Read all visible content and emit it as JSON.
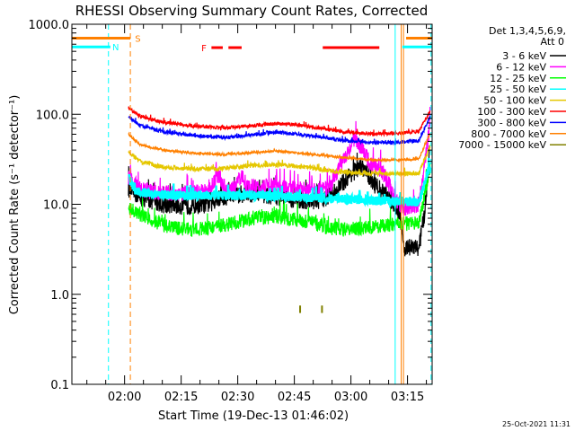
{
  "chart_data": {
    "type": "line",
    "title": "RHESSI Observing Summary Count Rates, Corrected",
    "xlabel": "Start Time (19-Dec-13 01:46:02)",
    "ylabel": "Corrected Count Rate (s⁻¹ detector⁻¹)",
    "yscale": "log",
    "ylim": [
      0.1,
      1000
    ],
    "xlim_minutes": [
      0,
      95.5
    ],
    "x_ticks": [
      {
        "label": "02:00",
        "minutes": 13.97
      },
      {
        "label": "02:15",
        "minutes": 28.97
      },
      {
        "label": "02:30",
        "minutes": 43.97
      },
      {
        "label": "02:45",
        "minutes": 58.97
      },
      {
        "label": "03:00",
        "minutes": 73.97
      },
      {
        "label": "03:15",
        "minutes": 88.97
      }
    ],
    "y_ticks": [
      {
        "label": "1000.0",
        "value": 1000
      },
      {
        "label": "100.0",
        "value": 100
      },
      {
        "label": "10.0",
        "value": 10
      },
      {
        "label": "1.0",
        "value": 1
      },
      {
        "label": "0.1",
        "value": 0.1
      }
    ],
    "legend": {
      "header": [
        "Det 1,3,4,5,6,9,",
        "Att 0"
      ],
      "position": "right"
    },
    "series": [
      {
        "name": "3 - 6 keV",
        "color": "#000000",
        "noise": 0.1,
        "points": [
          [
            15,
            15
          ],
          [
            18,
            12
          ],
          [
            24,
            10
          ],
          [
            30,
            9.5
          ],
          [
            36,
            10
          ],
          [
            40,
            12
          ],
          [
            45,
            13
          ],
          [
            50,
            13
          ],
          [
            55,
            12
          ],
          [
            60,
            11
          ],
          [
            66,
            11
          ],
          [
            70,
            14
          ],
          [
            74,
            22
          ],
          [
            77,
            26
          ],
          [
            80,
            17
          ],
          [
            84,
            12
          ],
          [
            87,
            8
          ],
          [
            88,
            3.3
          ],
          [
            92,
            3.3
          ],
          [
            93.5,
            8
          ],
          [
            95,
            45
          ]
        ]
      },
      {
        "name": "6 - 12 keV",
        "color": "#ff00ff",
        "noise": 0.09,
        "points": [
          [
            15,
            20
          ],
          [
            18,
            15
          ],
          [
            22,
            13.5
          ],
          [
            30,
            13
          ],
          [
            36,
            14
          ],
          [
            39,
            21
          ],
          [
            41,
            14
          ],
          [
            43,
            15
          ],
          [
            45,
            21
          ],
          [
            47,
            15
          ],
          [
            52,
            16
          ],
          [
            58,
            15
          ],
          [
            64,
            14
          ],
          [
            68,
            15
          ],
          [
            70,
            22
          ],
          [
            73,
            38
          ],
          [
            75,
            52
          ],
          [
            77,
            42
          ],
          [
            79,
            28
          ],
          [
            82,
            24
          ],
          [
            84,
            17
          ],
          [
            86,
            11
          ],
          [
            88,
            9
          ],
          [
            92,
            10
          ],
          [
            95,
            80
          ]
        ]
      },
      {
        "name": "12 - 25 keV",
        "color": "#00ff00",
        "noise": 0.08,
        "points": [
          [
            15,
            9
          ],
          [
            20,
            7
          ],
          [
            26,
            5.5
          ],
          [
            32,
            5.2
          ],
          [
            40,
            5.8
          ],
          [
            48,
            7
          ],
          [
            54,
            7.2
          ],
          [
            62,
            6.5
          ],
          [
            68,
            5.5
          ],
          [
            72,
            5.2
          ],
          [
            78,
            5.5
          ],
          [
            86,
            6
          ],
          [
            92,
            6.2
          ],
          [
            95,
            26
          ]
        ]
      },
      {
        "name": "25 - 50 keV",
        "color": "#00ffff",
        "noise": 0.05,
        "points": [
          [
            15,
            20
          ],
          [
            17,
            14
          ],
          [
            22,
            13
          ],
          [
            30,
            12.5
          ],
          [
            40,
            12.5
          ],
          [
            50,
            12.5
          ],
          [
            60,
            12
          ],
          [
            70,
            11.5
          ],
          [
            80,
            11
          ],
          [
            92,
            10.5
          ],
          [
            95,
            28
          ]
        ]
      },
      {
        "name": "50 - 100 keV",
        "color": "#e5c700",
        "noise": 0.025,
        "points": [
          [
            15,
            38
          ],
          [
            18,
            30
          ],
          [
            24,
            26
          ],
          [
            32,
            24.5
          ],
          [
            40,
            25
          ],
          [
            48,
            27
          ],
          [
            55,
            27.5
          ],
          [
            62,
            26
          ],
          [
            70,
            23
          ],
          [
            78,
            22
          ],
          [
            86,
            22
          ],
          [
            92,
            22
          ],
          [
            95,
            45
          ]
        ]
      },
      {
        "name": "100 - 300 keV",
        "color": "#ff0000",
        "noise": 0.02,
        "points": [
          [
            15,
            118
          ],
          [
            18,
            95
          ],
          [
            24,
            82
          ],
          [
            32,
            74
          ],
          [
            40,
            70
          ],
          [
            48,
            75
          ],
          [
            54,
            79
          ],
          [
            60,
            76
          ],
          [
            66,
            70
          ],
          [
            72,
            64
          ],
          [
            80,
            60
          ],
          [
            88,
            62
          ],
          [
            92,
            65
          ],
          [
            95,
            110
          ]
        ]
      },
      {
        "name": "300 - 800 keV",
        "color": "#0000ff",
        "noise": 0.02,
        "points": [
          [
            15,
            95
          ],
          [
            18,
            75
          ],
          [
            24,
            64
          ],
          [
            32,
            58
          ],
          [
            40,
            55
          ],
          [
            48,
            59
          ],
          [
            54,
            63
          ],
          [
            60,
            60
          ],
          [
            66,
            56
          ],
          [
            72,
            51
          ],
          [
            80,
            48
          ],
          [
            88,
            49
          ],
          [
            92,
            51
          ],
          [
            95,
            95
          ]
        ]
      },
      {
        "name": "800 - 7000 keV",
        "color": "#ff8000",
        "noise": 0.012,
        "points": [
          [
            15,
            60
          ],
          [
            18,
            46
          ],
          [
            24,
            40
          ],
          [
            32,
            37
          ],
          [
            40,
            35.5
          ],
          [
            48,
            37.5
          ],
          [
            54,
            39
          ],
          [
            60,
            37
          ],
          [
            66,
            35
          ],
          [
            72,
            33
          ],
          [
            80,
            31
          ],
          [
            88,
            31
          ],
          [
            92,
            32
          ],
          [
            95,
            62
          ]
        ]
      },
      {
        "name": "7000 - 15000 keV",
        "color": "#808000",
        "noise": 0,
        "points": [
          [
            60.5,
            0.62
          ],
          [
            60.5,
            0.75
          ],
          [
            66.3,
            0.62
          ],
          [
            66.3,
            0.75
          ]
        ]
      }
    ],
    "annotations": [
      {
        "type": "interval",
        "label": "S",
        "color": "#ff8000",
        "start_min": 0,
        "end_min": 15.5,
        "value": 700,
        "label_at_min": 17.5
      },
      {
        "type": "interval",
        "label": "S",
        "color": "#ff8000",
        "start_min": 88.6,
        "end_min": 95.5,
        "value": 700
      },
      {
        "type": "interval",
        "label": "N",
        "color": "#00ffff",
        "start_min": 0,
        "end_min": 10.2,
        "value": 560,
        "label_at_min": 11.6
      },
      {
        "type": "interval",
        "label": "N",
        "color": "#00ffff",
        "start_min": 87.6,
        "end_min": 95.5,
        "value": 560
      },
      {
        "type": "interval",
        "label": "F",
        "color": "#ff0000",
        "start_min": 37,
        "end_min": 45,
        "value": 550,
        "label_at_min": 35,
        "dashed": true
      },
      {
        "type": "interval",
        "label": "",
        "color": "#ff0000",
        "start_min": 66.5,
        "end_min": 81.5,
        "value": 550
      }
    ],
    "vertical_markers": [
      {
        "minutes": 9.7,
        "color": "#00ffff",
        "style": "dashed"
      },
      {
        "minutes": 15.5,
        "color": "#ff8000",
        "style": "dashed"
      },
      {
        "minutes": 85.7,
        "color": "#00ffff",
        "style": "solid"
      },
      {
        "minutes": 87.3,
        "color": "#ff8000",
        "style": "solid"
      },
      {
        "minutes": 87.9,
        "color": "#ff8000",
        "style": "solid"
      },
      {
        "minutes": 95.2,
        "color": "#00ffff",
        "style": "dashed"
      }
    ]
  },
  "footer": {
    "timestamp": "25-Oct-2021 11:31"
  }
}
